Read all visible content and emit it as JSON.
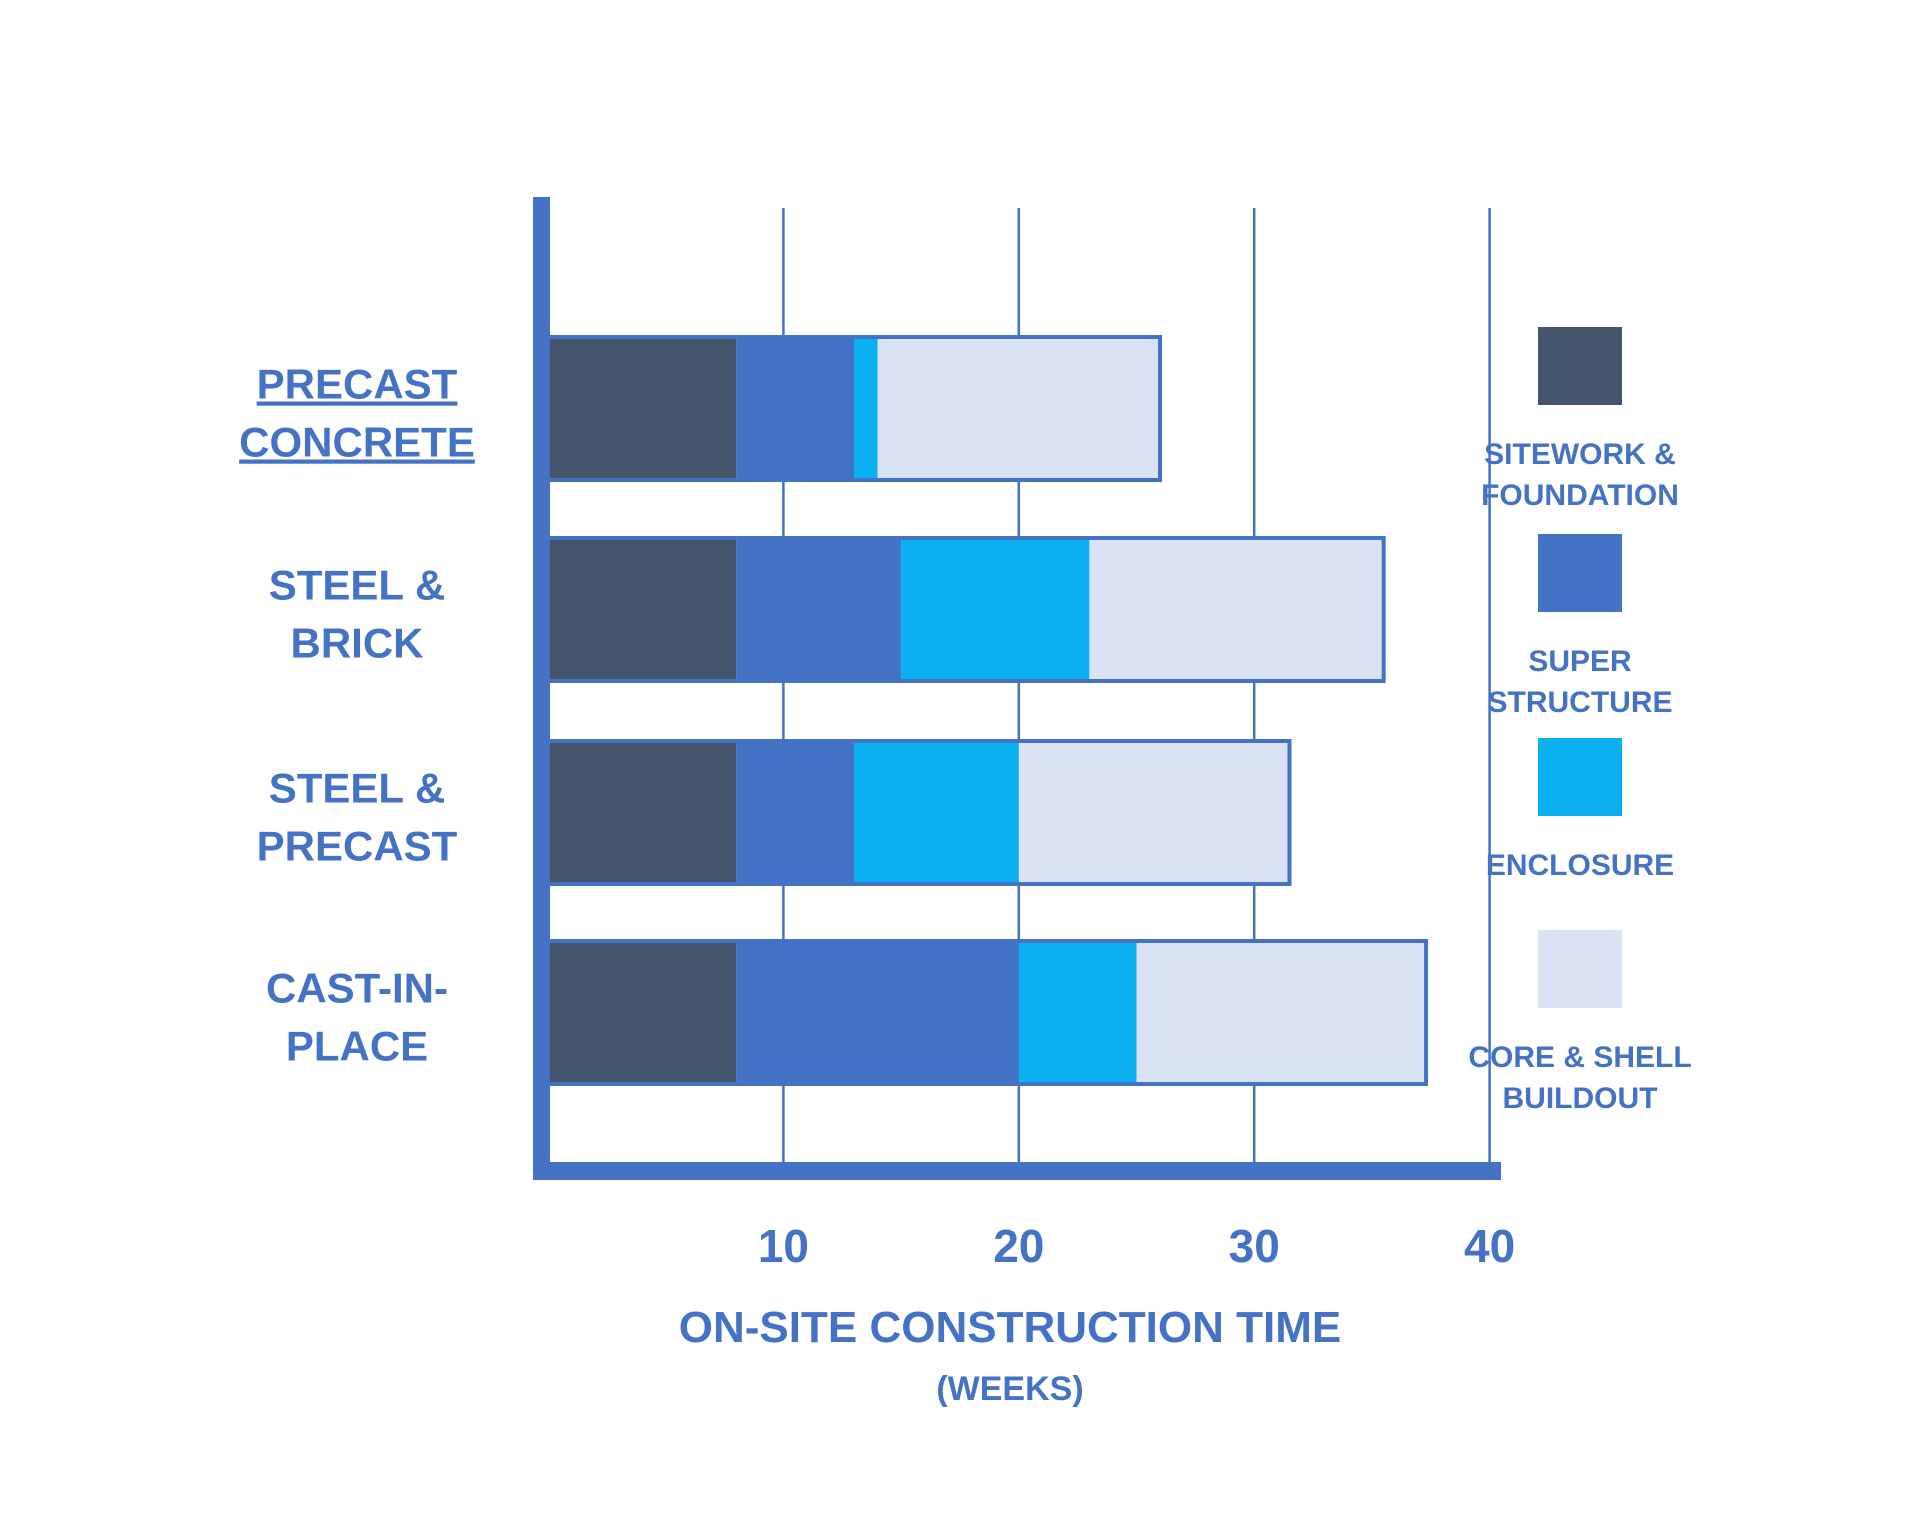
{
  "chart_data": {
    "type": "bar",
    "orientation": "horizontal",
    "stacked": true,
    "title": "",
    "xlabel": "ON-SITE CONSTRUCTION TIME",
    "xlabel_sub": "(WEEKS)",
    "ylabel": "",
    "xlim": [
      0,
      40
    ],
    "xticks": [
      10,
      20,
      30,
      40
    ],
    "grid": "vertical",
    "legend_position": "right",
    "categories": [
      [
        "PRECAST",
        "CONCRETE"
      ],
      [
        "STEEL &",
        "BRICK"
      ],
      [
        "STEEL &",
        "PRECAST"
      ],
      [
        "CAST-IN-",
        "PLACE"
      ]
    ],
    "highlighted_category_index": 0,
    "series": [
      {
        "name": [
          "SITEWORK &",
          "FOUNDATION"
        ],
        "color": "#44546a",
        "values": [
          8,
          8,
          8,
          8
        ]
      },
      {
        "name": [
          "SUPER",
          "STRUCTURE"
        ],
        "color": "#4472c4",
        "values": [
          5,
          7,
          5,
          12
        ]
      },
      {
        "name": [
          "ENCLOSURE"
        ],
        "color": "#0ab0f0",
        "values": [
          1,
          8,
          7,
          5
        ]
      },
      {
        "name": [
          "CORE & SHELL",
          "BUILDOUT"
        ],
        "color": "#dae3f3",
        "values": [
          12,
          12.5,
          11.5,
          12.3
        ]
      }
    ],
    "accent_color": "#4472c4"
  }
}
